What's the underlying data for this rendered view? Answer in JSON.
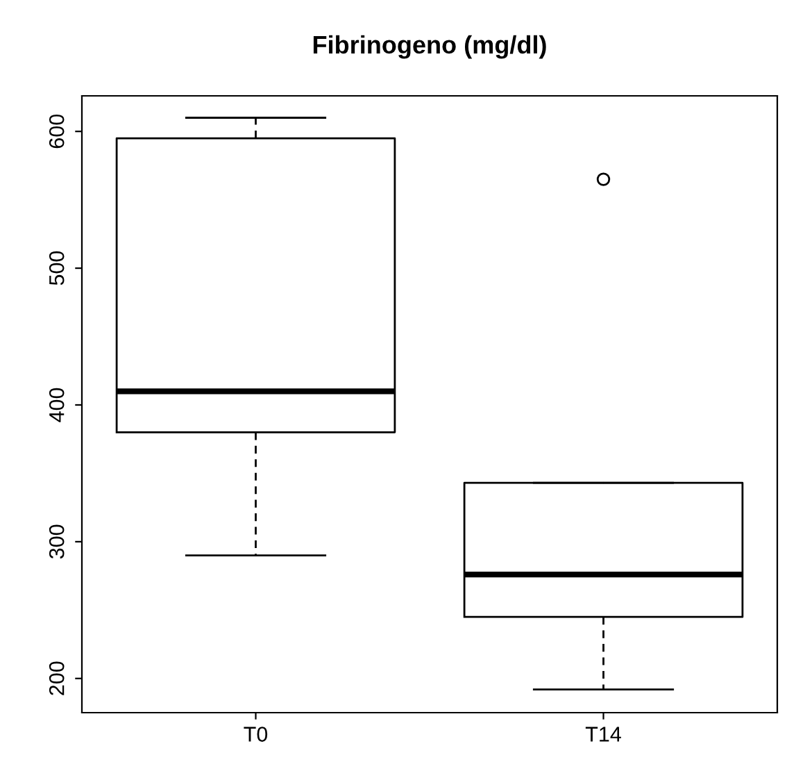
{
  "chart_data": {
    "type": "box",
    "title": "Fibrinogeno (mg/dl)",
    "categories": [
      "T0",
      "T14"
    ],
    "boxes": [
      {
        "low": 290,
        "q1": 380,
        "median": 410,
        "q3": 595,
        "high": 610
      },
      {
        "low": 192,
        "q1": 245,
        "median": 276,
        "q3": 343,
        "high": 343,
        "outliers": [
          565
        ]
      }
    ],
    "ylim": [
      175,
      626
    ],
    "yticks": [
      200,
      300,
      400,
      500,
      600
    ],
    "grid": false
  }
}
